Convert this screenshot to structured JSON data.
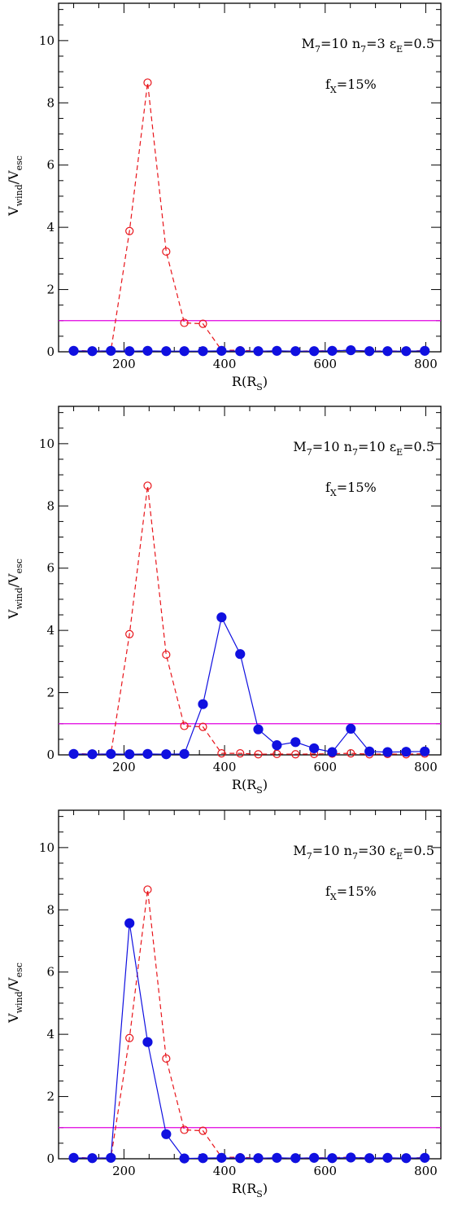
{
  "chart_data": [
    {
      "type": "line",
      "annotation": {
        "m": "M",
        "m_sub": "7",
        "m_val": "=10",
        "n": "n",
        "n_sub": "7",
        "n_val": "=3",
        "eps": "ε",
        "eps_sub": "E",
        "eps_val": "=0.5",
        "f": "f",
        "f_sub": "X",
        "f_val": "=15%"
      },
      "ylabel": {
        "main": "V",
        "sub1": "wind",
        "slash": "/V",
        "sub2": "esc"
      },
      "xlabel": {
        "main": "R(R",
        "sub": "S",
        "close": ")"
      },
      "xlim": [
        70,
        830
      ],
      "ylim": [
        0,
        11.2
      ],
      "xticks": [
        200,
        400,
        600,
        800
      ],
      "xtick_labels": [
        "200",
        "400",
        "600",
        "800"
      ],
      "yticks": [
        0,
        2,
        4,
        6,
        8,
        10
      ],
      "ytick_labels": [
        "0",
        "2",
        "4",
        "6",
        "8",
        "10"
      ],
      "hline": {
        "y": 1.0,
        "color": "#e000e0"
      },
      "series": [
        {
          "style": "dashed-open",
          "color": "#e8141a",
          "x": [
            100,
            137,
            174,
            211,
            247,
            284,
            320,
            357,
            394,
            431,
            467,
            504,
            541,
            578,
            614,
            651,
            688,
            724,
            761,
            798
          ],
          "y": [
            0.05,
            0.02,
            0.03,
            3.88,
            8.65,
            3.22,
            0.93,
            0.9,
            0.05,
            0.05,
            0.02,
            0.03,
            0.02,
            0.03,
            0.04,
            0.05,
            0.02,
            0.03,
            0.02,
            0.04
          ]
        },
        {
          "style": "solid-filled",
          "color": "#1010e0",
          "x": [
            100,
            137,
            174,
            211,
            247,
            284,
            320,
            357,
            394,
            431,
            467,
            504,
            541,
            578,
            614,
            651,
            688,
            724,
            761,
            798
          ],
          "y": [
            0.03,
            0.02,
            0.03,
            0.02,
            0.03,
            0.02,
            0.02,
            0.02,
            0.03,
            0.02,
            0.02,
            0.03,
            0.02,
            0.02,
            0.03,
            0.05,
            0.02,
            0.02,
            0.02,
            0.03
          ]
        }
      ]
    },
    {
      "type": "line",
      "annotation": {
        "m": "M",
        "m_sub": "7",
        "m_val": "=10",
        "n": "n",
        "n_sub": "7",
        "n_val": "=10",
        "eps": "ε",
        "eps_sub": "E",
        "eps_val": "=0.5",
        "f": "f",
        "f_sub": "X",
        "f_val": "=15%"
      },
      "ylabel": {
        "main": "V",
        "sub1": "wind",
        "slash": "/V",
        "sub2": "esc"
      },
      "xlabel": {
        "main": "R(R",
        "sub": "S",
        "close": ")"
      },
      "xlim": [
        70,
        830
      ],
      "ylim": [
        0,
        11.2
      ],
      "xticks": [
        200,
        400,
        600,
        800
      ],
      "xtick_labels": [
        "200",
        "400",
        "600",
        "800"
      ],
      "yticks": [
        0,
        2,
        4,
        6,
        8,
        10
      ],
      "ytick_labels": [
        "0",
        "2",
        "4",
        "6",
        "8",
        "10"
      ],
      "hline": {
        "y": 1.0,
        "color": "#e000e0"
      },
      "series": [
        {
          "style": "dashed-open",
          "color": "#e8141a",
          "x": [
            100,
            137,
            174,
            211,
            247,
            284,
            320,
            357,
            394,
            431,
            467,
            504,
            541,
            578,
            614,
            651,
            688,
            724,
            761,
            798
          ],
          "y": [
            0.05,
            0.02,
            0.03,
            3.88,
            8.65,
            3.22,
            0.93,
            0.9,
            0.05,
            0.05,
            0.02,
            0.03,
            0.02,
            0.03,
            0.04,
            0.05,
            0.02,
            0.03,
            0.02,
            0.04
          ]
        },
        {
          "style": "solid-filled",
          "color": "#1010e0",
          "x": [
            100,
            137,
            174,
            211,
            247,
            284,
            320,
            357,
            394,
            431,
            467,
            504,
            541,
            578,
            614,
            651,
            688,
            724,
            761,
            798
          ],
          "y": [
            0.03,
            0.02,
            0.03,
            0.02,
            0.03,
            0.02,
            0.03,
            1.63,
            4.42,
            3.24,
            0.82,
            0.31,
            0.41,
            0.21,
            0.09,
            0.84,
            0.11,
            0.09,
            0.1,
            0.11
          ]
        }
      ]
    },
    {
      "type": "line",
      "annotation": {
        "m": "M",
        "m_sub": "7",
        "m_val": "=10",
        "n": "n",
        "n_sub": "7",
        "n_val": "=30",
        "eps": "ε",
        "eps_sub": "E",
        "eps_val": "=0.5",
        "f": "f",
        "f_sub": "X",
        "f_val": "=15%"
      },
      "ylabel": {
        "main": "V",
        "sub1": "wind",
        "slash": "/V",
        "sub2": "esc"
      },
      "xlabel": {
        "main": "R(R",
        "sub": "S",
        "close": ")"
      },
      "xlim": [
        70,
        830
      ],
      "ylim": [
        0,
        11.2
      ],
      "xticks": [
        200,
        400,
        600,
        800
      ],
      "xtick_labels": [
        "200",
        "400",
        "600",
        "800"
      ],
      "yticks": [
        0,
        2,
        4,
        6,
        8,
        10
      ],
      "ytick_labels": [
        "0",
        "2",
        "4",
        "6",
        "8",
        "10"
      ],
      "hline": {
        "y": 1.0,
        "color": "#e000e0"
      },
      "series": [
        {
          "style": "dashed-open",
          "color": "#e8141a",
          "x": [
            100,
            137,
            174,
            211,
            247,
            284,
            320,
            357,
            394,
            431,
            467,
            504,
            541,
            578,
            614,
            651,
            688,
            724,
            761,
            798
          ],
          "y": [
            0.05,
            0.02,
            0.03,
            3.88,
            8.65,
            3.22,
            0.93,
            0.9,
            0.05,
            0.05,
            0.02,
            0.03,
            0.02,
            0.03,
            0.04,
            0.05,
            0.02,
            0.03,
            0.02,
            0.04
          ]
        },
        {
          "style": "solid-filled",
          "color": "#1010e0",
          "x": [
            100,
            137,
            174,
            211,
            247,
            284,
            320,
            357,
            394,
            431,
            467,
            504,
            541,
            578,
            614,
            651,
            688,
            724,
            761,
            798
          ],
          "y": [
            0.03,
            0.02,
            0.03,
            7.57,
            3.75,
            0.79,
            0.01,
            0.02,
            0.03,
            0.02,
            0.02,
            0.03,
            0.02,
            0.03,
            0.02,
            0.04,
            0.02,
            0.03,
            0.02,
            0.03
          ]
        }
      ]
    }
  ]
}
